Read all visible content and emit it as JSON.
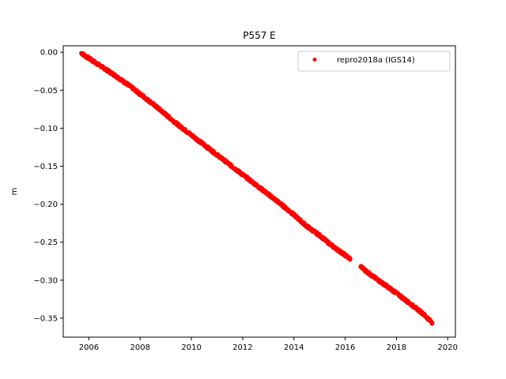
{
  "chart_data": {
    "type": "scatter",
    "title": "P557 E",
    "xlabel": "",
    "ylabel": "m",
    "xlim": [
      2005.0,
      2020.3
    ],
    "ylim": [
      -0.375,
      0.0085
    ],
    "xticks": [
      2006,
      2008,
      2010,
      2012,
      2014,
      2016,
      2018,
      2020
    ],
    "yticks": [
      0.0,
      -0.05,
      -0.1,
      -0.15,
      -0.2,
      -0.25,
      -0.3,
      -0.35
    ],
    "ytick_labels": [
      "0.00",
      "−0.05",
      "−0.10",
      "−0.15",
      "−0.20",
      "−0.25",
      "−0.30",
      "−0.35"
    ],
    "legend_position": "top-right",
    "grid": false,
    "series": [
      {
        "name": "repro2018a (IGS14)",
        "color": "#ff0000",
        "marker": "dot",
        "segments": [
          {
            "x": [
              2005.7,
              2006.0,
              2006.5,
              2007.0,
              2007.5,
              2008.0,
              2008.5,
              2009.0,
              2009.5,
              2010.0,
              2010.5,
              2011.0,
              2011.5,
              2012.0,
              2012.5,
              2013.0,
              2013.5,
              2014.0,
              2014.5,
              2015.0,
              2015.5,
              2016.0,
              2016.2
            ],
            "y": [
              -0.001,
              -0.008,
              -0.019,
              -0.03,
              -0.042,
              -0.055,
              -0.068,
              -0.082,
              -0.096,
              -0.109,
              -0.122,
              -0.135,
              -0.148,
              -0.161,
              -0.174,
              -0.187,
              -0.2,
              -0.214,
              -0.229,
              -0.241,
              -0.255,
              -0.267,
              -0.272
            ]
          },
          {
            "x": [
              2016.6,
              2017.0,
              2017.5,
              2018.0,
              2018.5,
              2019.0,
              2019.4
            ],
            "y": [
              -0.282,
              -0.293,
              -0.305,
              -0.317,
              -0.33,
              -0.343,
              -0.356
            ]
          }
        ]
      }
    ]
  }
}
